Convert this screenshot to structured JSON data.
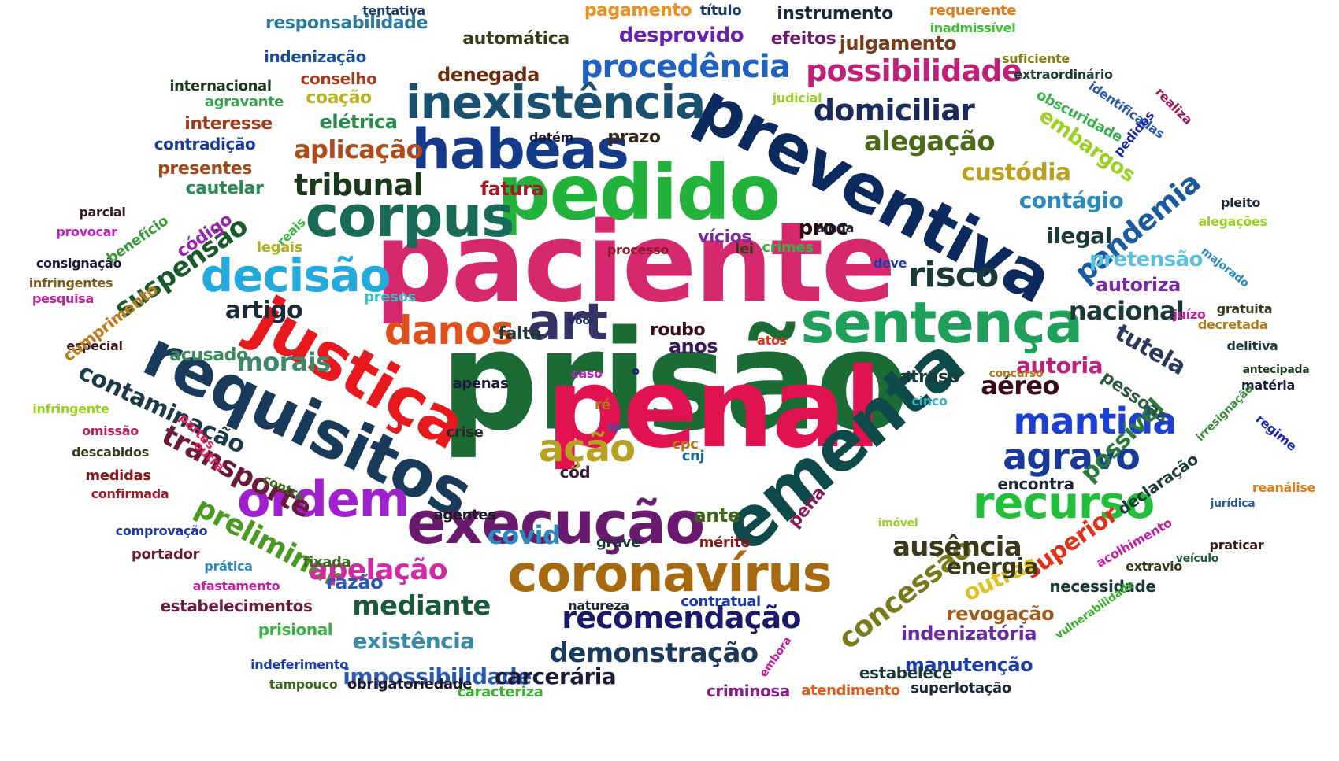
{
  "words": [
    {
      "text": "prisão",
      "color": "#1b6b35"
    },
    {
      "text": "paciente",
      "color": "#d6286e"
    },
    {
      "text": "penal",
      "color": "#e0124f"
    },
    {
      "text": "preventiva",
      "color": "#0c2a5e"
    },
    {
      "text": "pedido",
      "color": "#22b43a"
    },
    {
      "text": "ementa",
      "color": "#0e4a4a"
    },
    {
      "text": "justiça",
      "color": "#e8191e"
    },
    {
      "text": "requisitos",
      "color": "#1a3a5c"
    },
    {
      "text": "execução",
      "color": "#6a1a6e"
    },
    {
      "text": "sentença",
      "color": "#1fa05a"
    },
    {
      "text": "habeas",
      "color": "#133b8a"
    },
    {
      "text": "corpus",
      "color": "#1a6a5a"
    },
    {
      "text": "inexistência",
      "color": "#1a5070"
    },
    {
      "text": "coronavírus",
      "color": "#a86a10"
    },
    {
      "text": "decisão",
      "color": "#22aadd"
    },
    {
      "text": "ordem",
      "color": "#a020d0"
    },
    {
      "text": "recurso",
      "color": "#22c03a"
    },
    {
      "text": "agravo",
      "color": "#1a3a9a"
    },
    {
      "text": "mantida",
      "color": "#1e40d0"
    },
    {
      "text": "danos",
      "color": "#e0501a"
    },
    {
      "text": "art",
      "color": "#333366"
    },
    {
      "text": "ação",
      "color": "#b8a020"
    },
    {
      "text": "risco",
      "color": "#1a3a3a"
    },
    {
      "text": "procedência",
      "color": "#2060c0"
    },
    {
      "text": "possibilidade",
      "color": "#c0207a"
    },
    {
      "text": "domiciliar",
      "color": "#1a2a5a"
    },
    {
      "text": "alegação",
      "color": "#4a6a1a"
    },
    {
      "text": "tribunal",
      "color": "#1a3a1a"
    },
    {
      "text": "aplicação",
      "color": "#b04a1a"
    },
    {
      "text": "transporte",
      "color": "#6a1a3a"
    },
    {
      "text": "preliminar",
      "color": "#4a9a20"
    },
    {
      "text": "suspensão",
      "color": "#1a5a2a"
    },
    {
      "text": "pandemia",
      "color": "#1a5aa0"
    },
    {
      "text": "concessão",
      "color": "#7a7a1a"
    },
    {
      "text": "recomendação",
      "color": "#1a1a6a"
    },
    {
      "text": "demonstração",
      "color": "#1a3a5a"
    },
    {
      "text": "apelação",
      "color": "#d02aa0"
    },
    {
      "text": "ausência",
      "color": "#3a3a1a"
    },
    {
      "text": "morais",
      "color": "#3a8a6a"
    },
    {
      "text": "contaminação",
      "color": "#1a3a4a"
    },
    {
      "text": "mediante",
      "color": "#1a5a3a"
    },
    {
      "text": "artigo",
      "color": "#1a2a3a"
    },
    {
      "text": "custódia",
      "color": "#b8a020"
    },
    {
      "text": "embargos",
      "color": "#9ad020"
    },
    {
      "text": "nacional",
      "color": "#1a3a3a"
    },
    {
      "text": "aéreo",
      "color": "#3a0a1a"
    },
    {
      "text": "autoria",
      "color": "#c0207a"
    },
    {
      "text": "tutela",
      "color": "#2a3a5a"
    },
    {
      "text": "possível",
      "color": "#2a7a3a"
    },
    {
      "text": "superior",
      "color": "#e0301a"
    },
    {
      "text": "outras",
      "color": "#e0c020"
    },
    {
      "text": "energia",
      "color": "#3a3a1a"
    },
    {
      "text": "existência",
      "color": "#3a8aaa"
    },
    {
      "text": "impossibilidade",
      "color": "#2a5ab0"
    },
    {
      "text": "carcerária",
      "color": "#1a1a3a"
    },
    {
      "text": "contágio",
      "color": "#2a8ac0"
    },
    {
      "text": "ilegal",
      "color": "#1a3a3a"
    },
    {
      "text": "pretensão",
      "color": "#5ac0e0"
    },
    {
      "text": "autoriza",
      "color": "#7a2aa0"
    },
    {
      "text": "proc",
      "color": "#2a0a0a"
    },
    {
      "text": "fatura",
      "color": "#a01a2a"
    },
    {
      "text": "elétrica",
      "color": "#2a8a4a"
    },
    {
      "text": "código",
      "color": "#9a20b0"
    },
    {
      "text": "cautelar",
      "color": "#2a8a5a"
    },
    {
      "text": "presentes",
      "color": "#a04a1a"
    },
    {
      "text": "contradição",
      "color": "#1a3a9a"
    },
    {
      "text": "interesse",
      "color": "#a03a1a"
    },
    {
      "text": "coação",
      "color": "#b8b020"
    },
    {
      "text": "conselho",
      "color": "#a03a1a"
    },
    {
      "text": "agravante",
      "color": "#3aa050"
    },
    {
      "text": "internacional",
      "color": "#1a3a1a"
    },
    {
      "text": "indenização",
      "color": "#1a4a9a"
    },
    {
      "text": "responsabilidade",
      "color": "#2a7aa0"
    },
    {
      "text": "tentativa",
      "color": "#1a3a6a"
    },
    {
      "text": "pagamento",
      "color": "#f0901a"
    },
    {
      "text": "título",
      "color": "#1a3a6a"
    },
    {
      "text": "instrumento",
      "color": "#1a2a3a"
    },
    {
      "text": "requerente",
      "color": "#e07a1a"
    },
    {
      "text": "inadmissível",
      "color": "#3ac030"
    },
    {
      "text": "desprovido",
      "color": "#6a20b0"
    },
    {
      "text": "efeitos",
      "color": "#6a1a6a"
    },
    {
      "text": "julgamento",
      "color": "#7a3a1a"
    },
    {
      "text": "automática",
      "color": "#3a3a1a"
    },
    {
      "text": "denegada",
      "color": "#6a2a0a"
    },
    {
      "text": "suficiente",
      "color": "#8a7a1a"
    },
    {
      "text": "extraordinário",
      "color": "#1a3a3a"
    },
    {
      "text": "identificadas",
      "color": "#2a5ab0"
    },
    {
      "text": "obscuridade",
      "color": "#3ab050"
    },
    {
      "text": "realiza",
      "color": "#a01a5a"
    },
    {
      "text": "pedidos",
      "color": "#1a2a9a"
    },
    {
      "text": "pleito",
      "color": "#1a2a3a"
    },
    {
      "text": "alegações",
      "color": "#9ad020"
    },
    {
      "text": "majorado",
      "color": "#2a8ac0"
    },
    {
      "text": "gratuita",
      "color": "#3a3a1a"
    },
    {
      "text": "decretada",
      "color": "#b07a1a"
    },
    {
      "text": "delitiva",
      "color": "#1a3a3a"
    },
    {
      "text": "antecipada",
      "color": "#1a3a1a"
    },
    {
      "text": "matéria",
      "color": "#1a1a3a"
    },
    {
      "text": "irresignação",
      "color": "#3a8a3a"
    },
    {
      "text": "regime",
      "color": "#1a2ab0"
    },
    {
      "text": "reanálise",
      "color": "#e07a1a"
    },
    {
      "text": "jurídica",
      "color": "#2a5a9a"
    },
    {
      "text": "praticar",
      "color": "#3a1a1a"
    },
    {
      "text": "veículo",
      "color": "#1a5a3a"
    },
    {
      "text": "extravio",
      "color": "#3a3a1a"
    },
    {
      "text": "acolhimento",
      "color": "#c020a0"
    },
    {
      "text": "necessidade",
      "color": "#1a3a3a"
    },
    {
      "text": "vulnerabilidade",
      "color": "#3ab030"
    },
    {
      "text": "declaração",
      "color": "#1a3a3a"
    },
    {
      "text": "encontra",
      "color": "#1a2a3a"
    },
    {
      "text": "pessoas",
      "color": "#2a5a3a"
    },
    {
      "text": "revogação",
      "color": "#a05a1a"
    },
    {
      "text": "indenizatória",
      "color": "#6a2aa0"
    },
    {
      "text": "manutenção",
      "color": "#1a3ab0"
    },
    {
      "text": "estabelece",
      "color": "#1a3a3a"
    },
    {
      "text": "superlotação",
      "color": "#1a2a3a"
    },
    {
      "text": "atendimento",
      "color": "#e05a1a"
    },
    {
      "text": "criminosa",
      "color": "#8a1a8a"
    },
    {
      "text": "embora",
      "color": "#c020a0"
    },
    {
      "text": "caracteriza",
      "color": "#3ab030"
    },
    {
      "text": "obrigatoriedade",
      "color": "#1a1a2a"
    },
    {
      "text": "tampouco",
      "color": "#3a6a1a"
    },
    {
      "text": "indeferimento",
      "color": "#1a3ab0"
    },
    {
      "text": "prisional",
      "color": "#3ab040"
    },
    {
      "text": "estabelecimentos",
      "color": "#6a1a3a"
    },
    {
      "text": "afastamento",
      "color": "#c020a0"
    },
    {
      "text": "prática",
      "color": "#2a8ac0"
    },
    {
      "text": "portador",
      "color": "#6a1a3a"
    },
    {
      "text": "comprovação",
      "color": "#1a3ab0"
    },
    {
      "text": "confirmada",
      "color": "#a01a2a"
    },
    {
      "text": "medidas",
      "color": "#8a1a1a"
    },
    {
      "text": "descabidos",
      "color": "#3a3a1a"
    },
    {
      "text": "omissão",
      "color": "#c0205a"
    },
    {
      "text": "infringente",
      "color": "#9ad020"
    },
    {
      "text": "especial",
      "color": "#3a1a1a"
    },
    {
      "text": "cumprimento",
      "color": "#c07a1a"
    },
    {
      "text": "pesquisa",
      "color": "#c020a0"
    },
    {
      "text": "infringentes",
      "color": "#7a5a1a"
    },
    {
      "text": "consignação",
      "color": "#1a1a3a"
    },
    {
      "text": "provocar",
      "color": "#c020c0"
    },
    {
      "text": "parcial",
      "color": "#3a1a1a"
    },
    {
      "text": "benefício",
      "color": "#3a9a3a"
    },
    {
      "text": "reais",
      "color": "#3ab040"
    },
    {
      "text": "legais",
      "color": "#b0b020"
    },
    {
      "text": "presos",
      "color": "#3ac0c0"
    },
    {
      "text": "acusado",
      "color": "#3a8a5a"
    },
    {
      "text": "falta",
      "color": "#1a3a3a"
    },
    {
      "text": "roubo",
      "color": "#3a0a1a"
    },
    {
      "text": "anos",
      "color": "#3a1a5a"
    },
    {
      "text": "voo",
      "color": "#1a2a5a"
    },
    {
      "text": "atos",
      "color": "#e0301a"
    },
    {
      "text": "caso",
      "color": "#c020c0"
    },
    {
      "text": "o",
      "color": "#1a1a6a"
    },
    {
      "text": "apenas",
      "color": "#1a1a3a"
    },
    {
      "text": "crise",
      "color": "#2a2a2a"
    },
    {
      "text": "partes",
      "color": "#e0205a"
    },
    {
      "text": "outra",
      "color": "#e0205a"
    },
    {
      "text": "ré",
      "color": "#b07a1a"
    },
    {
      "text": "sp",
      "color": "#2a5ab0"
    },
    {
      "text": "cód",
      "color": "#3a1a3a"
    },
    {
      "text": "cpc",
      "color": "#b07a1a"
    },
    {
      "text": "cnj",
      "color": "#1a6a9a"
    },
    {
      "text": "contra",
      "color": "#3a6a1a"
    },
    {
      "text": "agentes",
      "color": "#1a1a2a"
    },
    {
      "text": "covid",
      "color": "#2a8ac0"
    },
    {
      "text": "grave",
      "color": "#1a3a3a"
    },
    {
      "text": "ante",
      "color": "#3a6a1a"
    },
    {
      "text": "pena",
      "color": "#8a1a5a"
    },
    {
      "text": "mérito",
      "color": "#8a1a1a"
    },
    {
      "text": "fixada",
      "color": "#3a6a1a"
    },
    {
      "text": "razão",
      "color": "#2a5ab0"
    },
    {
      "text": "natureza",
      "color": "#1a2a3a"
    },
    {
      "text": "contratual",
      "color": "#1a3ab0"
    },
    {
      "text": "imóvel",
      "color": "#9ad020"
    },
    {
      "text": "cinco",
      "color": "#3ab0c0"
    },
    {
      "text": "concurso",
      "color": "#b07a1a"
    },
    {
      "text": "juízo",
      "color": "#c020a0"
    },
    {
      "text": "atraso",
      "color": "#1a3a3a"
    },
    {
      "text": "deve",
      "color": "#1a3ab0"
    },
    {
      "text": "crimes",
      "color": "#3ab040"
    },
    {
      "text": "lei",
      "color": "#3a3a1a"
    },
    {
      "text": "vícios",
      "color": "#7a2aa0"
    },
    {
      "text": "ainda",
      "color": "#1a1a3a"
    },
    {
      "text": "processo",
      "color": "#8a1a2a"
    },
    {
      "text": "prazo",
      "color": "#3a2a1a"
    },
    {
      "text": "detém",
      "color": "#1a1a3a"
    },
    {
      "text": "judicial",
      "color": "#9ad020"
    }
  ]
}
